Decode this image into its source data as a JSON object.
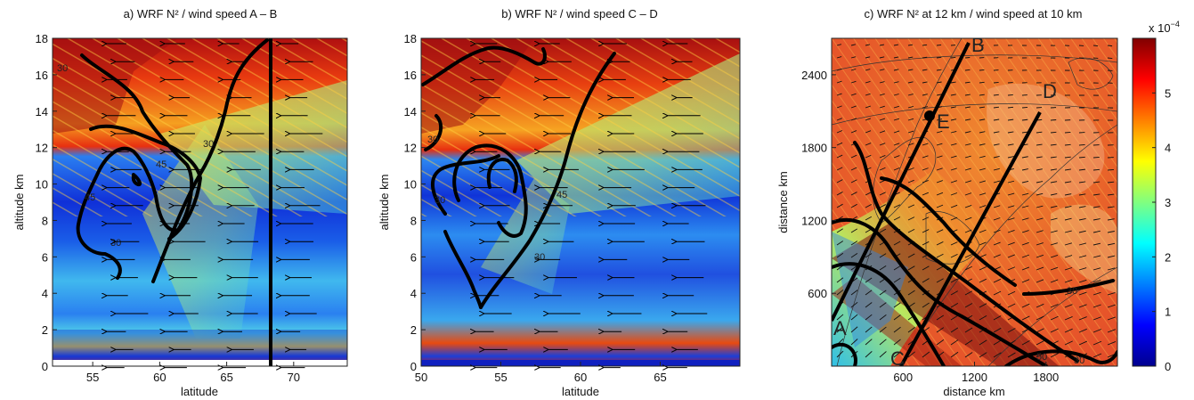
{
  "chart_data": [
    {
      "type": "heatmap",
      "title": "a) WRF N² / wind speed  A – B",
      "xlabel": "latitude",
      "ylabel": "altitude km",
      "xlim": [
        52,
        74
      ],
      "ylim": [
        0,
        18
      ],
      "xticks": [
        55,
        60,
        65,
        70
      ],
      "yticks": [
        0,
        2,
        4,
        6,
        8,
        10,
        12,
        14,
        16,
        18
      ],
      "contour_labels": [
        "30",
        "30",
        "45",
        "45",
        "30"
      ],
      "vertical_marker_x": 68
    },
    {
      "type": "heatmap",
      "title": "b) WRF N² / wind speed  C – D",
      "xlabel": "latitude",
      "ylabel": "altitude km",
      "xlim": [
        50,
        70
      ],
      "ylim": [
        0,
        18
      ],
      "xticks": [
        50,
        55,
        60,
        65
      ],
      "yticks": [
        0,
        2,
        4,
        6,
        8,
        10,
        12,
        14,
        16,
        18
      ],
      "contour_labels": [
        "30",
        "30",
        "45",
        "30"
      ]
    },
    {
      "type": "heatmap",
      "title": "c) WRF N²  at 12 km / wind speed  at 10 km",
      "xlabel": "distance km",
      "ylabel": "distance km",
      "xlim": [
        0,
        2400
      ],
      "ylim": [
        0,
        2700
      ],
      "xticks": [
        600,
        1200,
        1800
      ],
      "yticks": [
        600,
        1200,
        1800,
        2400
      ],
      "point_labels": [
        "B",
        "D",
        "E",
        "A",
        "C"
      ],
      "contour_labels": [
        "30",
        "30",
        "50"
      ]
    }
  ],
  "colorbar": {
    "range": [
      0,
      6
    ],
    "ticks": [
      0,
      1,
      2,
      3,
      4,
      5
    ],
    "exponent": "x 10",
    "exponent_power": "−4",
    "colormap": "jet"
  }
}
